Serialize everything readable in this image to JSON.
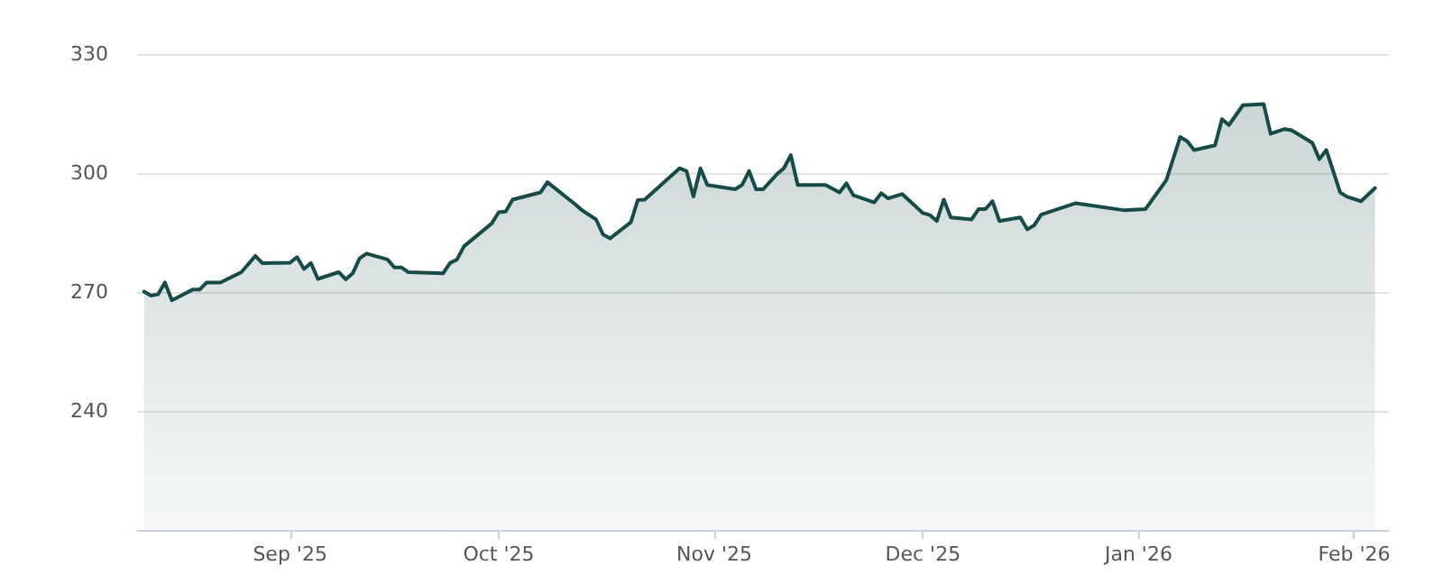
{
  "chart_data": {
    "type": "area",
    "x": [
      "2025-08-11",
      "2025-08-12",
      "2025-08-13",
      "2025-08-14",
      "2025-08-15",
      "2025-08-18",
      "2025-08-19",
      "2025-08-20",
      "2025-08-22",
      "2025-08-25",
      "2025-08-27",
      "2025-08-28",
      "2025-09-01",
      "2025-09-02",
      "2025-09-03",
      "2025-09-04",
      "2025-09-05",
      "2025-09-08",
      "2025-09-09",
      "2025-09-10",
      "2025-09-11",
      "2025-09-12",
      "2025-09-15",
      "2025-09-16",
      "2025-09-17",
      "2025-09-18",
      "2025-09-23",
      "2025-09-24",
      "2025-09-25",
      "2025-09-26",
      "2025-09-30",
      "2025-10-01",
      "2025-10-02",
      "2025-10-03",
      "2025-10-07",
      "2025-10-08",
      "2025-10-12",
      "2025-10-13",
      "2025-10-15",
      "2025-10-16",
      "2025-10-17",
      "2025-10-20",
      "2025-10-21",
      "2025-10-22",
      "2025-10-27",
      "2025-10-28",
      "2025-10-29",
      "2025-10-30",
      "2025-10-31",
      "2025-11-04",
      "2025-11-05",
      "2025-11-06",
      "2025-11-07",
      "2025-11-08",
      "2025-11-10",
      "2025-11-11",
      "2025-11-12",
      "2025-11-13",
      "2025-11-17",
      "2025-11-19",
      "2025-11-20",
      "2025-11-21",
      "2025-11-24",
      "2025-11-25",
      "2025-11-26",
      "2025-11-28",
      "2025-12-01",
      "2025-12-02",
      "2025-12-03",
      "2025-12-04",
      "2025-12-05",
      "2025-12-08",
      "2025-12-09",
      "2025-12-10",
      "2025-12-11",
      "2025-12-12",
      "2025-12-15",
      "2025-12-16",
      "2025-12-17",
      "2025-12-18",
      "2025-12-23",
      "2025-12-30",
      "2026-01-02",
      "2026-01-05",
      "2026-01-07",
      "2026-01-08",
      "2026-01-09",
      "2026-01-12",
      "2026-01-13",
      "2026-01-14",
      "2026-01-16",
      "2026-01-19",
      "2026-01-20",
      "2026-01-22",
      "2026-01-23",
      "2026-01-26",
      "2026-01-27",
      "2026-01-28",
      "2026-01-30",
      "2026-01-31",
      "2026-02-02",
      "2026-02-04"
    ],
    "series": [
      {
        "color": "#174b47",
        "values": [
          270.1,
          269.1,
          269.4,
          272.4,
          267.9,
          270.6,
          270.6,
          272.4,
          272.4,
          275,
          279.1,
          277.3,
          277.4,
          278.8,
          275.8,
          277.3,
          273.3,
          275,
          273.2,
          274.7,
          278.5,
          279.7,
          278.2,
          276.2,
          276.2,
          275,
          274.7,
          277.3,
          278.2,
          281.5,
          287.3,
          290.1,
          290.3,
          293.3,
          295.1,
          297.7,
          292.1,
          290.6,
          288.3,
          284.5,
          283.5,
          287.6,
          293.2,
          293.3,
          301.2,
          300.5,
          294.1,
          301.2,
          297,
          295.9,
          297,
          300.5,
          295.9,
          295.9,
          299.7,
          301.2,
          304.5,
          297,
          297,
          295.1,
          297.4,
          294.4,
          292.6,
          294.9,
          293.6,
          294.7,
          289.9,
          289.4,
          287.9,
          293.3,
          288.8,
          288.3,
          290.9,
          290.9,
          292.9,
          287.9,
          288.8,
          285.8,
          286.8,
          289.5,
          292.4,
          290.6,
          290.9,
          298.2,
          309.1,
          308,
          305.8,
          307,
          313.6,
          312.1,
          317.1,
          317.4,
          309.9,
          311.1,
          310.8,
          307.6,
          303.5,
          305.8,
          295.1,
          294,
          292.9,
          296.2
        ]
      }
    ],
    "xlim": [
      "2025-08-10",
      "2026-02-06"
    ],
    "xticks": [
      {
        "value": "2025-09-01",
        "label": "Sep '25"
      },
      {
        "value": "2025-10-01",
        "label": "Oct '25"
      },
      {
        "value": "2025-11-01",
        "label": "Nov '25"
      },
      {
        "value": "2025-12-01",
        "label": "Dec '25"
      },
      {
        "value": "2026-01-01",
        "label": "Jan '26"
      },
      {
        "value": "2026-02-01",
        "label": "Feb '26"
      }
    ],
    "ylim": [
      210,
      330
    ],
    "yticks": [
      240,
      270,
      300,
      330
    ],
    "grid": "y",
    "marker": "none",
    "line_style": "solid"
  }
}
